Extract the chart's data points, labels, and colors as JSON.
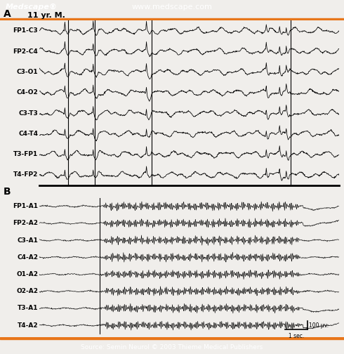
{
  "header_bg": "#1b3a6b",
  "header_text_left": "Medscape®",
  "header_text_center": "www.medscape.com",
  "footer_bg": "#1b3a6b",
  "footer_text": "Source: Semin Neurol © 2003 Thieme Medical Publishers",
  "accent_color": "#e8761a",
  "bg_color": "#f0eeeb",
  "eeg_color": "#000000",
  "section_A_label": "A",
  "section_B_label": "B",
  "patient_label": "11 yr. M.",
  "channels_A": [
    "FP1-C3",
    "FP2-C4",
    "C3-O1",
    "C4-O2",
    "C3-T3",
    "C4-T4",
    "T3-FP1",
    "T4-FP2"
  ],
  "channels_B": [
    "FP1-A1",
    "FP2-A2",
    "C3-A1",
    "C4-A2",
    "O1-A2",
    "O2-A2",
    "T3-A1",
    "T4-A2"
  ],
  "scale_bar_label_v": "100 μv.",
  "scale_bar_label_h": "1 sec.",
  "header_fontsize": 8,
  "footer_fontsize": 6.5,
  "channel_fontsize": 6.5,
  "label_fontsize": 10,
  "patient_fontsize": 8
}
